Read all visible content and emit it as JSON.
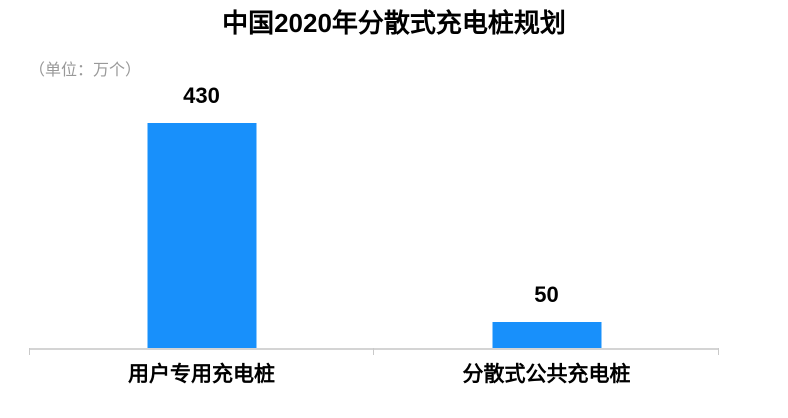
{
  "chart_data": {
    "type": "bar",
    "title": "中国2020年分散式充电桩规划",
    "unit_label": "（单位：万个）",
    "categories": [
      "用户专用充电桩",
      "分散式公共充电桩"
    ],
    "values": [
      430,
      50
    ],
    "xlabel": "",
    "ylabel": "万个",
    "ylim": [
      0,
      430
    ],
    "grid": false,
    "legend": "none",
    "data_labels_shown": true,
    "colors": {
      "bar": "#1890fb",
      "axis": "#d4d4d4",
      "title_text": "#000000",
      "unit_text": "#999999",
      "background": "#ffffff"
    }
  }
}
